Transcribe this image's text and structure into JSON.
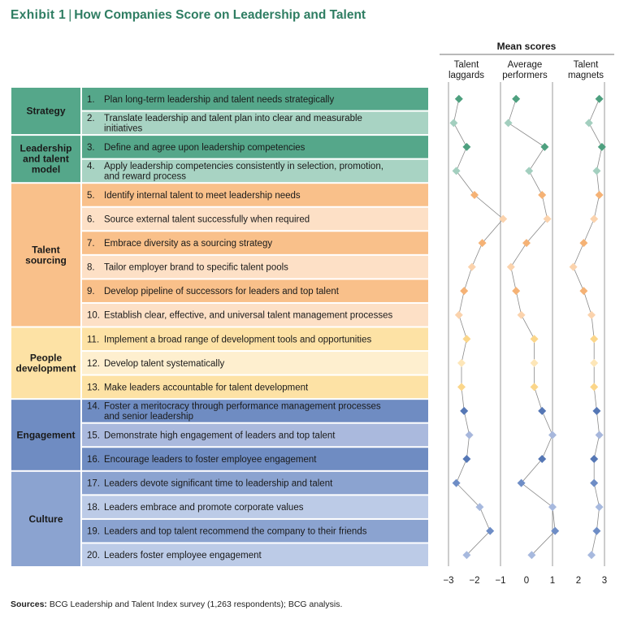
{
  "title": {
    "exhibit": "Exhibit 1",
    "separator": "|",
    "text": "How Companies Score on Leadership and Talent"
  },
  "source": {
    "label": "Sources:",
    "text": "BCG Leadership and Talent Index survey (1,263 respondents); BCG analysis."
  },
  "colors": {
    "Strategy": {
      "dark": "#55a78a",
      "light": "#a8d3c3",
      "label": "#55a78a"
    },
    "Leadership and talent model": {
      "dark": "#55a78a",
      "light": "#a8d3c3",
      "label": "#55a78a"
    },
    "Talent sourcing": {
      "dark": "#f9c08a",
      "light": "#fde0c6",
      "label": "#f9c08a"
    },
    "People development": {
      "dark": "#fde2a5",
      "light": "#feefcf",
      "label": "#fde2a5"
    },
    "Engagement": {
      "dark": "#6f8cc2",
      "light": "#aab9dd",
      "label": "#6f8cc2"
    },
    "Culture": {
      "dark": "#8ba3d0",
      "light": "#bccbe7",
      "label": "#8ba3d0"
    }
  },
  "marker_colors": {
    "Strategy": [
      "#4ea07f",
      "#a3cfbf"
    ],
    "Leadership and talent model": [
      "#4ea07f",
      "#a3cfbf"
    ],
    "Talent sourcing": [
      "#f5b275",
      "#fbd3ad"
    ],
    "People development": [
      "#fbd68a",
      "#fde6b8"
    ],
    "Engagement": [
      "#5577b5",
      "#a7b7dc"
    ],
    "Culture": [
      "#6e8dc6",
      "#a7b9de"
    ]
  },
  "chart_data": {
    "type": "line",
    "title": "Mean scores",
    "xlabel": "",
    "ylabel": "",
    "series_labels": [
      [
        "Talent",
        "laggards"
      ],
      [
        "Average",
        "performers"
      ],
      [
        "Talent",
        "magnets"
      ]
    ],
    "axis_ticks": [
      "−3",
      "−2",
      "−1",
      "0",
      "1",
      "2",
      "3"
    ],
    "axis_range": [
      -3,
      3
    ],
    "categories": [
      {
        "n": "1.",
        "text": [
          "Plan long-term leadership and talent needs strategically"
        ],
        "group": "Strategy",
        "shade": "dark"
      },
      {
        "n": "2.",
        "text": [
          "Translate leadership and talent plan into clear and measurable",
          "initiatives"
        ],
        "group": "Strategy",
        "shade": "light"
      },
      {
        "n": "3.",
        "text": [
          "Define and agree upon leadership competencies"
        ],
        "group": "Leadership and talent model",
        "shade": "dark"
      },
      {
        "n": "4.",
        "text": [
          "Apply leadership competencies consistently in selection, promotion,",
          "and reward process"
        ],
        "group": "Leadership and talent model",
        "shade": "light"
      },
      {
        "n": "5.",
        "text": [
          "Identify internal talent to meet leadership needs"
        ],
        "group": "Talent sourcing",
        "shade": "dark"
      },
      {
        "n": "6.",
        "text": [
          "Source external talent successfully when required"
        ],
        "group": "Talent sourcing",
        "shade": "light"
      },
      {
        "n": "7.",
        "text": [
          "Embrace diversity as a sourcing strategy"
        ],
        "group": "Talent sourcing",
        "shade": "dark"
      },
      {
        "n": "8.",
        "text": [
          "Tailor employer brand to specific talent pools"
        ],
        "group": "Talent sourcing",
        "shade": "light"
      },
      {
        "n": "9.",
        "text": [
          "Develop pipeline of successors for leaders and top talent"
        ],
        "group": "Talent sourcing",
        "shade": "dark"
      },
      {
        "n": "10.",
        "text": [
          "Establish clear, effective, and universal talent management processes"
        ],
        "group": "Talent sourcing",
        "shade": "light"
      },
      {
        "n": "11.",
        "text": [
          "Implement a broad range of development tools and opportunities"
        ],
        "group": "People development",
        "shade": "dark"
      },
      {
        "n": "12.",
        "text": [
          "Develop talent systematically"
        ],
        "group": "People development",
        "shade": "light"
      },
      {
        "n": "13.",
        "text": [
          "Make leaders accountable for talent development"
        ],
        "group": "People development",
        "shade": "dark"
      },
      {
        "n": "14.",
        "text": [
          "Foster a meritocracy through performance management processes",
          "and senior leadership"
        ],
        "group": "Engagement",
        "shade": "dark"
      },
      {
        "n": "15.",
        "text": [
          "Demonstrate high engagement of leaders and top talent"
        ],
        "group": "Engagement",
        "shade": "light"
      },
      {
        "n": "16.",
        "text": [
          "Encourage leaders to foster employee engagement"
        ],
        "group": "Engagement",
        "shade": "dark"
      },
      {
        "n": "17.",
        "text": [
          "Leaders devote significant time to leadership and talent"
        ],
        "group": "Culture",
        "shade": "dark"
      },
      {
        "n": "18.",
        "text": [
          "Leaders embrace and promote corporate values"
        ],
        "group": "Culture",
        "shade": "light"
      },
      {
        "n": "19.",
        "text": [
          "Leaders and top talent recommend the company to their friends"
        ],
        "group": "Culture",
        "shade": "dark"
      },
      {
        "n": "20.",
        "text": [
          "Leaders foster employee engagement"
        ],
        "group": "Culture",
        "shade": "light"
      }
    ],
    "groups": [
      {
        "name": "Strategy",
        "label": [
          "Strategy"
        ],
        "rows": [
          1,
          2
        ]
      },
      {
        "name": "Leadership and talent model",
        "label": [
          "Leadership",
          "and talent",
          "model"
        ],
        "rows": [
          3,
          4
        ]
      },
      {
        "name": "Talent sourcing",
        "label": [
          "Talent",
          "sourcing"
        ],
        "rows": [
          5,
          10
        ]
      },
      {
        "name": "People development",
        "label": [
          "People",
          "development"
        ],
        "rows": [
          11,
          13
        ]
      },
      {
        "name": "Engagement",
        "label": [
          "Engagement"
        ],
        "rows": [
          14,
          16
        ]
      },
      {
        "name": "Culture",
        "label": [
          "Culture"
        ],
        "rows": [
          17,
          20
        ]
      }
    ],
    "series": [
      {
        "name": "Talent laggards",
        "values": [
          -2.6,
          -2.8,
          -2.3,
          -2.7,
          -2.0,
          -0.9,
          -1.7,
          -2.1,
          -2.4,
          -2.6,
          -2.3,
          -2.5,
          -2.5,
          -2.4,
          -2.2,
          -2.3,
          -2.7,
          -1.8,
          -1.4,
          -2.3
        ]
      },
      {
        "name": "Average performers",
        "values": [
          -0.4,
          -0.7,
          0.7,
          0.1,
          0.6,
          0.8,
          0.0,
          -0.6,
          -0.4,
          -0.2,
          0.3,
          0.3,
          0.3,
          0.6,
          1.0,
          0.6,
          -0.2,
          1.0,
          1.1,
          0.2
        ]
      },
      {
        "name": "Talent magnets",
        "values": [
          2.8,
          2.4,
          2.9,
          2.7,
          2.8,
          2.6,
          2.2,
          1.8,
          2.2,
          2.5,
          2.6,
          2.6,
          2.6,
          2.7,
          2.8,
          2.6,
          2.6,
          2.8,
          2.7,
          2.5
        ]
      }
    ]
  }
}
